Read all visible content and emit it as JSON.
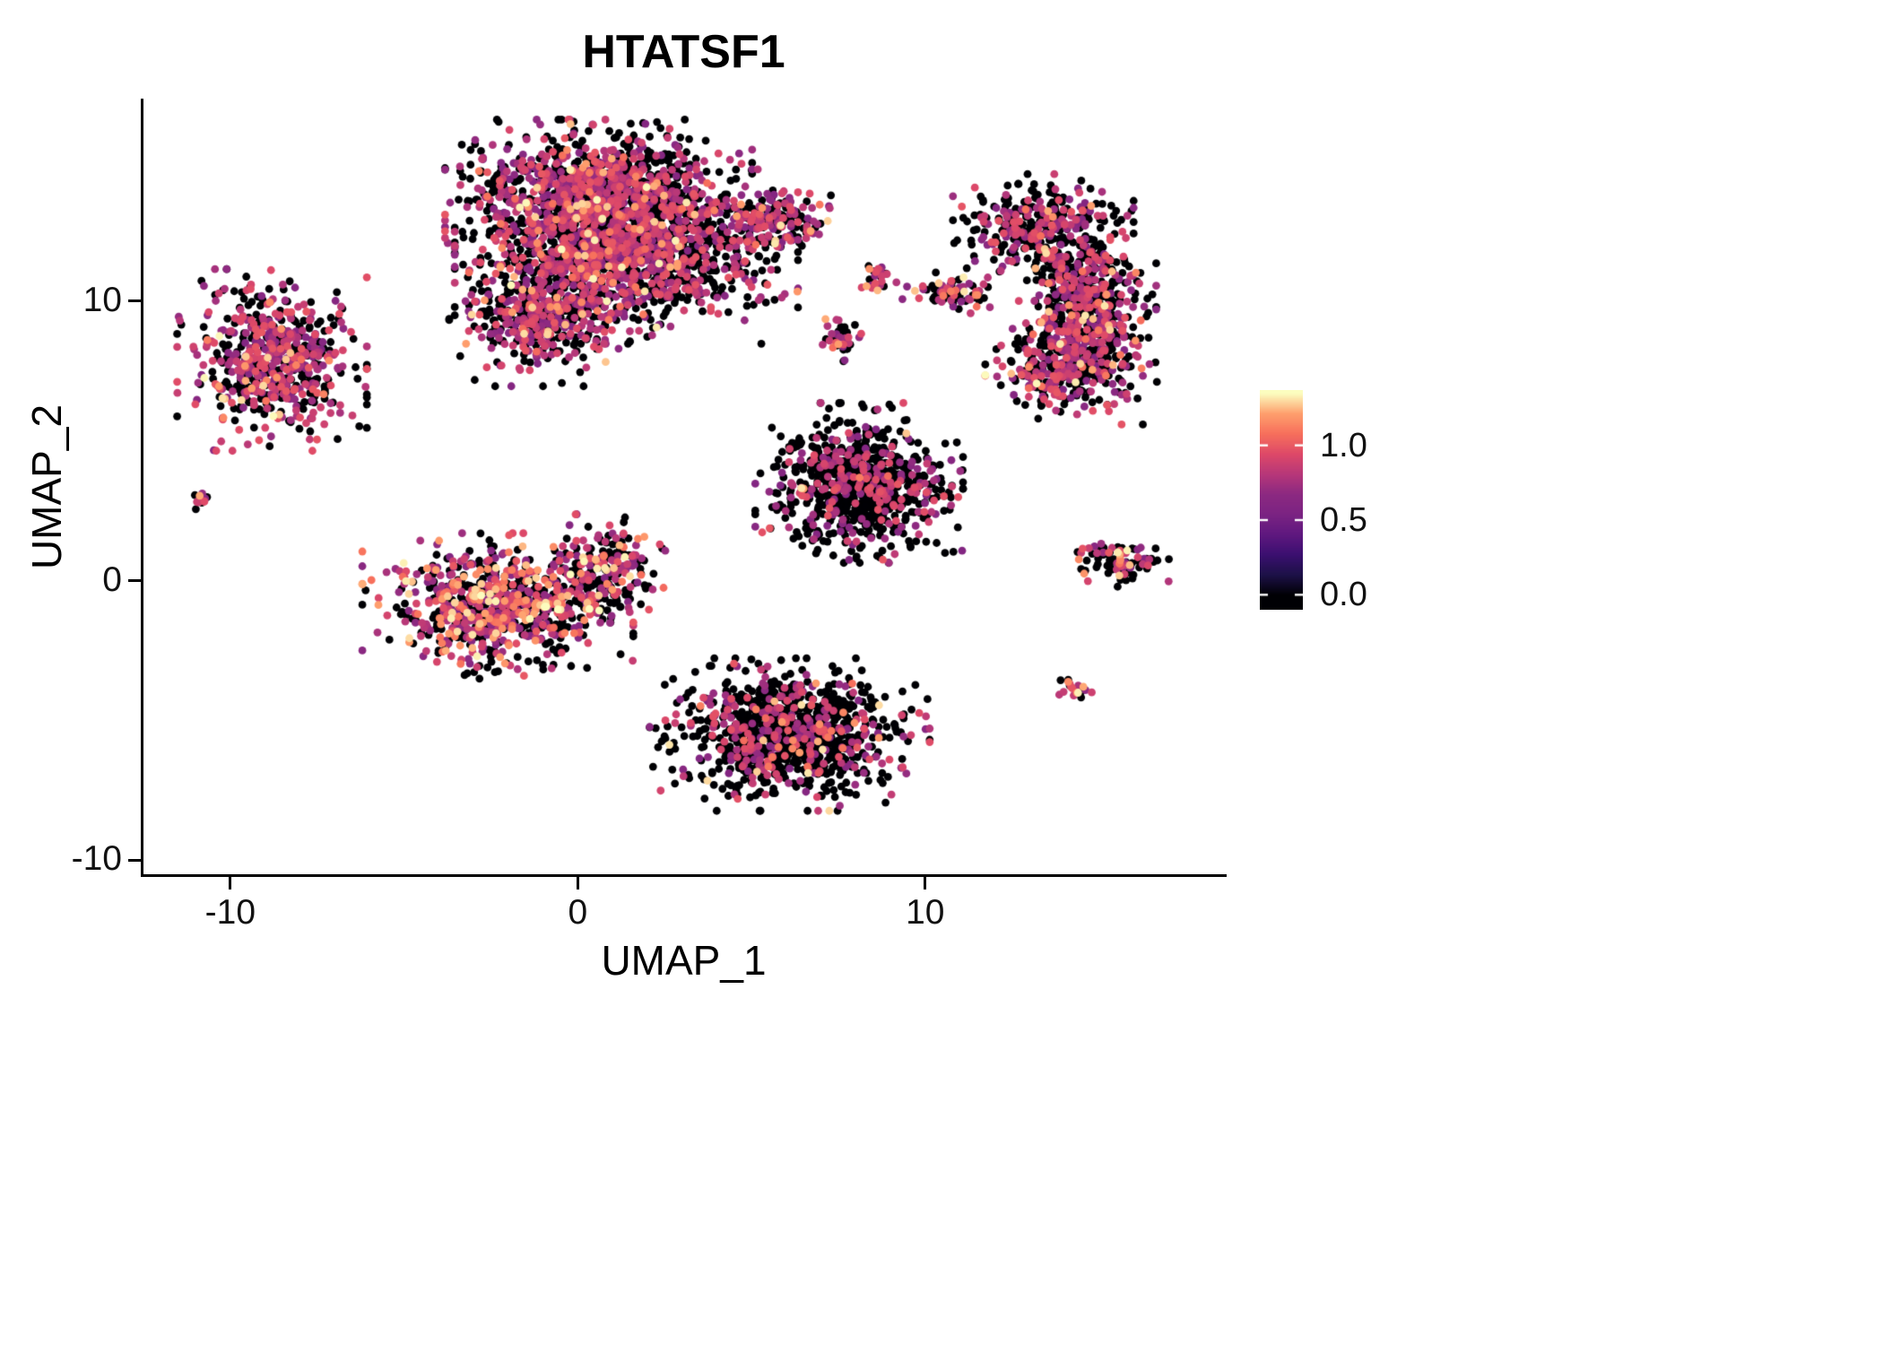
{
  "chart_data": {
    "type": "scatter",
    "title": "HTATSF1",
    "xlabel": "UMAP_1",
    "ylabel": "UMAP_2",
    "xlim": [
      -12.5,
      18.6
    ],
    "ylim": [
      -10.5,
      17.25
    ],
    "x_ticks": [
      -10,
      0,
      10
    ],
    "x_tick_labels": [
      "-10",
      "0",
      "10"
    ],
    "y_ticks": [
      -10,
      0,
      10
    ],
    "y_tick_labels": [
      "-10",
      "0",
      "10"
    ],
    "grid": false,
    "background": "#ffffff",
    "point_color_zero": "#000004",
    "legend": {
      "type": "colorbar",
      "position": "right",
      "ticks": [
        1.0,
        0.5,
        0.0
      ],
      "tick_labels": [
        "1.0",
        "0.5",
        "0.0"
      ],
      "value_range": [
        0,
        1.35
      ],
      "bar_value_range": [
        -0.1,
        1.37
      ],
      "colormap": "magma",
      "colormap_stops": [
        "#000004",
        "#1d1147",
        "#3b0f70",
        "#5f187f",
        "#7b2382",
        "#8c2981",
        "#b73779",
        "#de4968",
        "#f7705c",
        "#fe9f6d",
        "#fcfdbf"
      ]
    },
    "expression_bins": {
      "zero_value": 0,
      "mid_range": [
        0.6,
        1.0
      ],
      "high_range": [
        1.05,
        1.35
      ]
    },
    "points_model": "gaussian_mixture_clusters",
    "point_count_approx": 7950,
    "clusters": [
      {
        "name": "top-main-upper",
        "cx": 0.6,
        "cy": 13.9,
        "sx": 1.7,
        "sy": 1.0,
        "n": 1150,
        "frac_zero": 0.5,
        "frac_mid": 0.46,
        "frac_high": 0.04
      },
      {
        "name": "top-main-lower",
        "cx": 1.4,
        "cy": 11.6,
        "sx": 1.9,
        "sy": 1.2,
        "n": 1350,
        "frac_zero": 0.52,
        "frac_mid": 0.44,
        "frac_high": 0.04
      },
      {
        "name": "top-left-lobe",
        "cx": -1.1,
        "cy": 9.3,
        "sx": 1.0,
        "sy": 0.9,
        "n": 380,
        "frac_zero": 0.5,
        "frac_mid": 0.46,
        "frac_high": 0.04
      },
      {
        "name": "top-right-arm",
        "cx": 5.6,
        "cy": 12.9,
        "sx": 0.8,
        "sy": 0.5,
        "n": 170,
        "frac_zero": 0.45,
        "frac_mid": 0.5,
        "frac_high": 0.05
      },
      {
        "name": "upper-left",
        "cx": -8.8,
        "cy": 7.9,
        "sx": 1.05,
        "sy": 1.25,
        "n": 620,
        "frac_zero": 0.42,
        "frac_mid": 0.53,
        "frac_high": 0.05
      },
      {
        "name": "far-left-speck",
        "cx": -10.8,
        "cy": 2.9,
        "sx": 0.13,
        "sy": 0.13,
        "n": 14,
        "frac_zero": 0.4,
        "frac_mid": 0.5,
        "frac_high": 0.1
      },
      {
        "name": "mid-left-main",
        "cx": -2.3,
        "cy": -0.9,
        "sx": 1.5,
        "sy": 1.0,
        "n": 800,
        "frac_zero": 0.42,
        "frac_mid": 0.42,
        "frac_high": 0.16
      },
      {
        "name": "mid-left-tip",
        "cx": 0.7,
        "cy": 0.3,
        "sx": 0.7,
        "sy": 0.8,
        "n": 220,
        "frac_zero": 0.5,
        "frac_mid": 0.42,
        "frac_high": 0.08
      },
      {
        "name": "center-mid",
        "cx": 8.1,
        "cy": 3.5,
        "sx": 1.15,
        "sy": 1.1,
        "n": 820,
        "frac_zero": 0.72,
        "frac_mid": 0.27,
        "frac_high": 0.01
      },
      {
        "name": "bottom-main",
        "cx": 6.1,
        "cy": -5.5,
        "sx": 1.55,
        "sy": 1.05,
        "n": 1000,
        "frac_zero": 0.68,
        "frac_mid": 0.28,
        "frac_high": 0.04
      },
      {
        "name": "right-upper",
        "cx": 13.4,
        "cy": 12.6,
        "sx": 1.0,
        "sy": 0.75,
        "n": 330,
        "frac_zero": 0.55,
        "frac_mid": 0.42,
        "frac_high": 0.03
      },
      {
        "name": "right-mid",
        "cx": 14.7,
        "cy": 10.2,
        "sx": 0.75,
        "sy": 1.1,
        "n": 430,
        "frac_zero": 0.55,
        "frac_mid": 0.42,
        "frac_high": 0.03
      },
      {
        "name": "right-lower",
        "cx": 14.2,
        "cy": 7.8,
        "sx": 0.95,
        "sy": 0.85,
        "n": 420,
        "frac_zero": 0.52,
        "frac_mid": 0.44,
        "frac_high": 0.04
      },
      {
        "name": "top-small-dots",
        "cx": 8.6,
        "cy": 10.8,
        "sx": 0.22,
        "sy": 0.25,
        "n": 28,
        "frac_zero": 0.5,
        "frac_mid": 0.45,
        "frac_high": 0.05
      },
      {
        "name": "top-small-arc",
        "cx": 10.8,
        "cy": 10.3,
        "sx": 0.6,
        "sy": 0.28,
        "n": 70,
        "frac_zero": 0.45,
        "frac_mid": 0.45,
        "frac_high": 0.1
      },
      {
        "name": "small-pair",
        "cx": 7.6,
        "cy": 8.7,
        "sx": 0.28,
        "sy": 0.4,
        "n": 34,
        "frac_zero": 0.5,
        "frac_mid": 0.4,
        "frac_high": 0.1
      },
      {
        "name": "right-small-wedge",
        "cx": 15.6,
        "cy": 0.7,
        "sx": 0.6,
        "sy": 0.35,
        "n": 90,
        "frac_zero": 0.55,
        "frac_mid": 0.38,
        "frac_high": 0.07
      },
      {
        "name": "bottom-right-speck",
        "cx": 14.3,
        "cy": -3.8,
        "sx": 0.2,
        "sy": 0.2,
        "n": 20,
        "frac_zero": 0.35,
        "frac_mid": 0.45,
        "frac_high": 0.2
      }
    ]
  }
}
